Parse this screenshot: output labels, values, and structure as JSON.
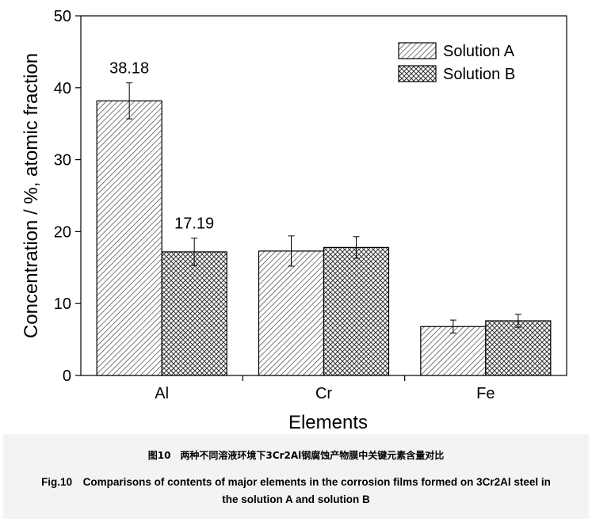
{
  "chart_data": {
    "type": "bar",
    "categories": [
      "Al",
      "Cr",
      "Fe"
    ],
    "series": [
      {
        "name": "Solution A",
        "values": [
          38.18,
          17.3,
          6.8
        ],
        "errors": [
          2.5,
          2.1,
          0.9
        ],
        "pattern": "hatch"
      },
      {
        "name": "Solution B",
        "values": [
          17.19,
          17.8,
          7.6
        ],
        "errors": [
          1.9,
          1.5,
          0.9
        ],
        "pattern": "crosshatch"
      }
    ],
    "data_labels": [
      {
        "category": "Al",
        "series": "Solution A",
        "text": "38.18"
      },
      {
        "category": "Al",
        "series": "Solution B",
        "text": "17.19"
      }
    ],
    "xlabel": "Elements",
    "ylabel": "Concentration / %, atomic fraction",
    "ylim": [
      0,
      50
    ],
    "yticks": [
      0,
      10,
      20,
      30,
      40,
      50
    ],
    "legend_position": "top-right",
    "grid": false
  },
  "caption": {
    "cn": "图10　两种不同溶液环境下3Cr2Al钢腐蚀产物膜中关键元素含量对比",
    "en": "Fig.10　Comparisons of contents of major elements in the corrosion films formed on 3Cr2Al steel in the solution A and solution B"
  }
}
